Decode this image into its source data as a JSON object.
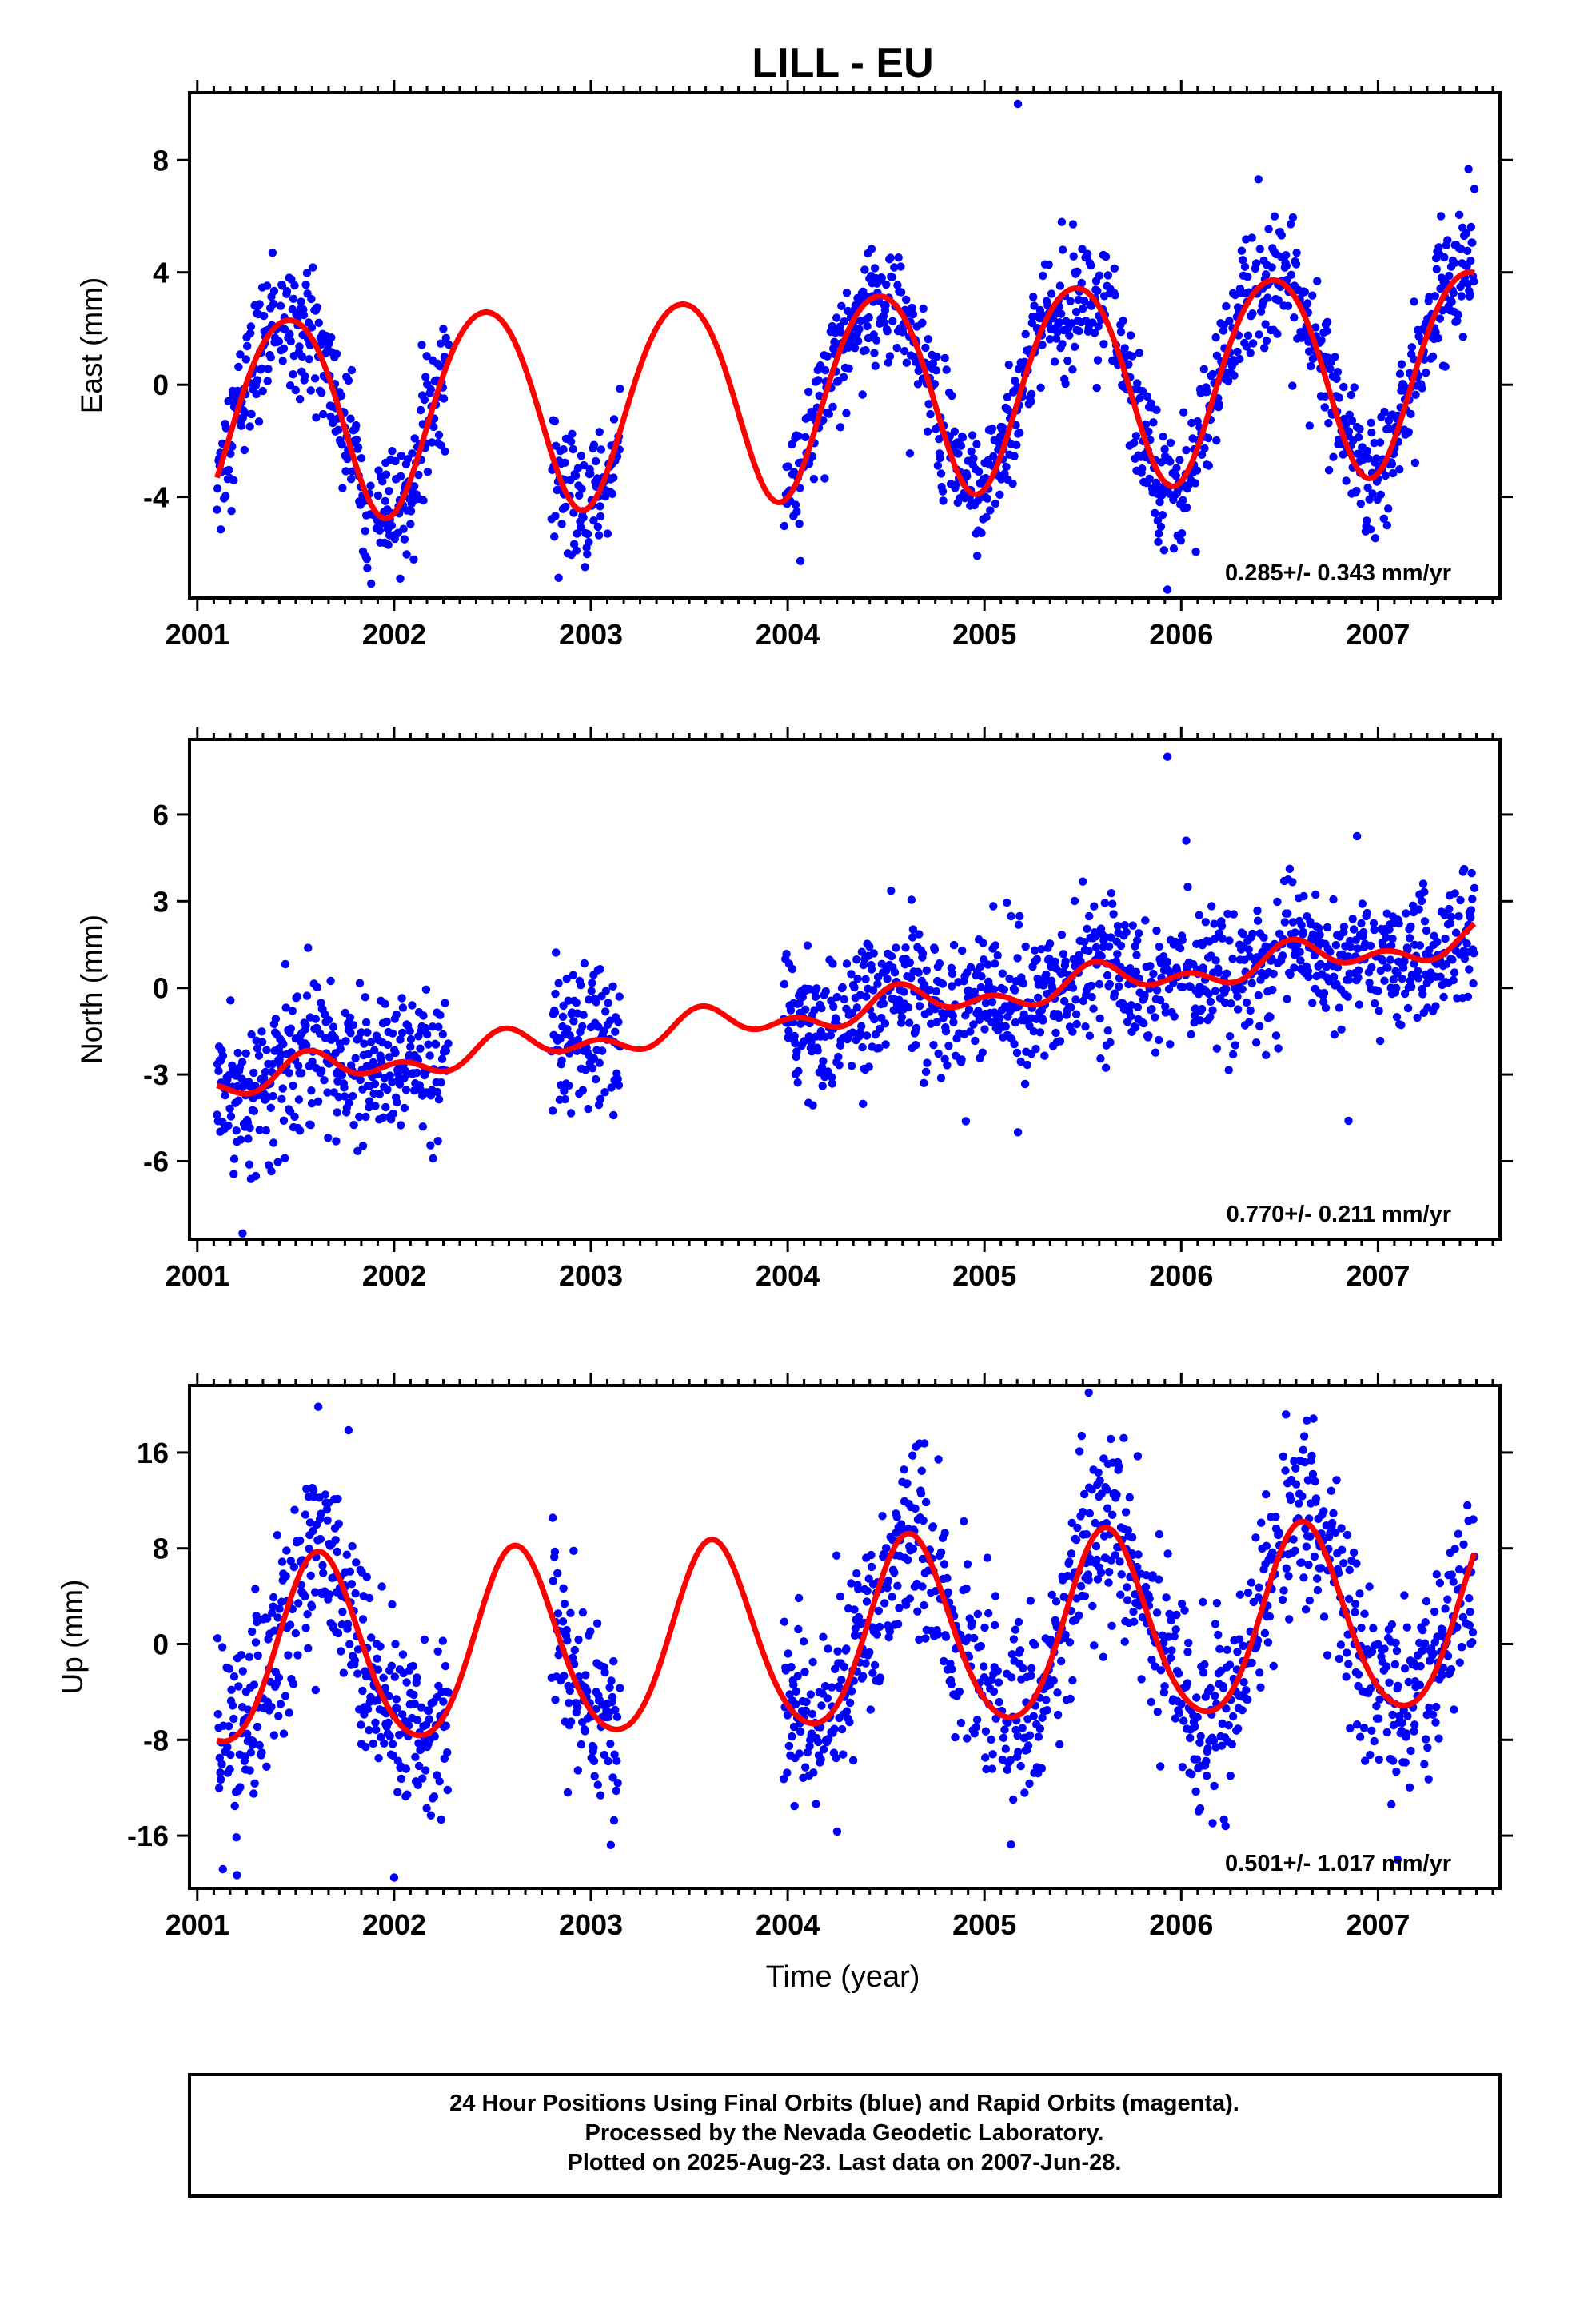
{
  "title": "LILL - EU",
  "x_axis_label": "Time (year)",
  "footer_lines": [
    "24 Hour Positions Using Final Orbits (blue) and Rapid Orbits (magenta).",
    "Processed by the Nevada Geodetic Laboratory.",
    "Plotted on 2025-Aug-23. Last data on 2007-Jun-28."
  ],
  "colors": {
    "points": "#0000ff",
    "fit": "#ff0000",
    "frame": "#000000"
  },
  "chart_data": [
    {
      "type": "scatter",
      "component": "east",
      "ylabel": "East (mm)",
      "xlim": [
        2000.96,
        2007.62
      ],
      "ylim": [
        -7.6,
        10.4
      ],
      "xticks": [
        2001,
        2002,
        2003,
        2004,
        2005,
        2006,
        2007
      ],
      "xtick_labels": [
        "2001",
        "2002",
        "2003",
        "2004",
        "2005",
        "2006",
        "2007"
      ],
      "yticks": [
        -4,
        0,
        4,
        8
      ],
      "ytick_labels": [
        "-4",
        "0",
        "4",
        "8"
      ],
      "rate_label": "0.285+/- 0.343 mm/yr",
      "fit": {
        "rate": 0.285,
        "offset": -0.2,
        "annual_amp": 3.6,
        "annual_peak": 0.46,
        "semi_amp": 0.3,
        "semi_peak": 0.2
      },
      "scatter_sigma": 1.1,
      "data_segments": [
        [
          2001.1,
          2002.28
        ],
        [
          2002.8,
          2003.15
        ],
        [
          2003.98,
          2007.49
        ]
      ],
      "outliers": [
        {
          "x": 2005.17,
          "y": 10.0
        },
        {
          "x": 2005.93,
          "y": -7.3
        }
      ]
    },
    {
      "type": "scatter",
      "component": "north",
      "ylabel": "North (mm)",
      "xlim": [
        2000.96,
        2007.62
      ],
      "ylim": [
        -8.7,
        8.6
      ],
      "xticks": [
        2001,
        2002,
        2003,
        2004,
        2005,
        2006,
        2007
      ],
      "xtick_labels": [
        "2001",
        "2002",
        "2003",
        "2004",
        "2005",
        "2006",
        "2007"
      ],
      "yticks": [
        -6,
        -3,
        0,
        3,
        6
      ],
      "ytick_labels": [
        "-6",
        "-3",
        "0",
        "3",
        "6"
      ],
      "rate_label": "0.770+/- 0.211 mm/yr",
      "fit": {
        "rate": 0.77,
        "offset": -0.8,
        "annual_amp": 0.4,
        "annual_peak": 0.6,
        "semi_amp": 0.35,
        "semi_peak": 0.05
      },
      "scatter_sigma": 1.2,
      "data_segments": [
        [
          2001.1,
          2002.28
        ],
        [
          2002.8,
          2003.15
        ],
        [
          2003.98,
          2007.49
        ]
      ],
      "outliers": [
        {
          "x": 2005.93,
          "y": 8.0
        },
        {
          "x": 2001.23,
          "y": -8.5
        },
        {
          "x": 2005.17,
          "y": -5.0
        },
        {
          "x": 2006.85,
          "y": -4.6
        }
      ]
    },
    {
      "type": "scatter",
      "component": "up",
      "ylabel": "Up (mm)",
      "xlim": [
        2000.96,
        2007.62
      ],
      "ylim": [
        -20.4,
        21.6
      ],
      "xticks": [
        2001,
        2002,
        2003,
        2004,
        2005,
        2006,
        2007
      ],
      "xtick_labels": [
        "2001",
        "2002",
        "2003",
        "2004",
        "2005",
        "2006",
        "2007"
      ],
      "yticks": [
        -16,
        -8,
        0,
        8,
        16
      ],
      "ytick_labels": [
        "-16",
        "-8",
        "0",
        "8",
        "16"
      ],
      "rate_label": "0.501+/- 1.017 mm/yr",
      "fit": {
        "rate": 0.501,
        "offset": 0.5,
        "annual_amp": 7.8,
        "annual_peak": 0.62,
        "semi_amp": 0.8,
        "semi_peak": 0.1
      },
      "scatter_sigma": 3.8,
      "data_segments": [
        [
          2001.1,
          2002.28
        ],
        [
          2002.8,
          2003.15
        ],
        [
          2003.98,
          2007.49
        ]
      ],
      "outliers": [
        {
          "x": 2005.53,
          "y": 21.0
        },
        {
          "x": 2002.0,
          "y": -19.5
        },
        {
          "x": 2001.13,
          "y": -18.8
        },
        {
          "x": 2007.1,
          "y": -18.0
        }
      ]
    }
  ]
}
